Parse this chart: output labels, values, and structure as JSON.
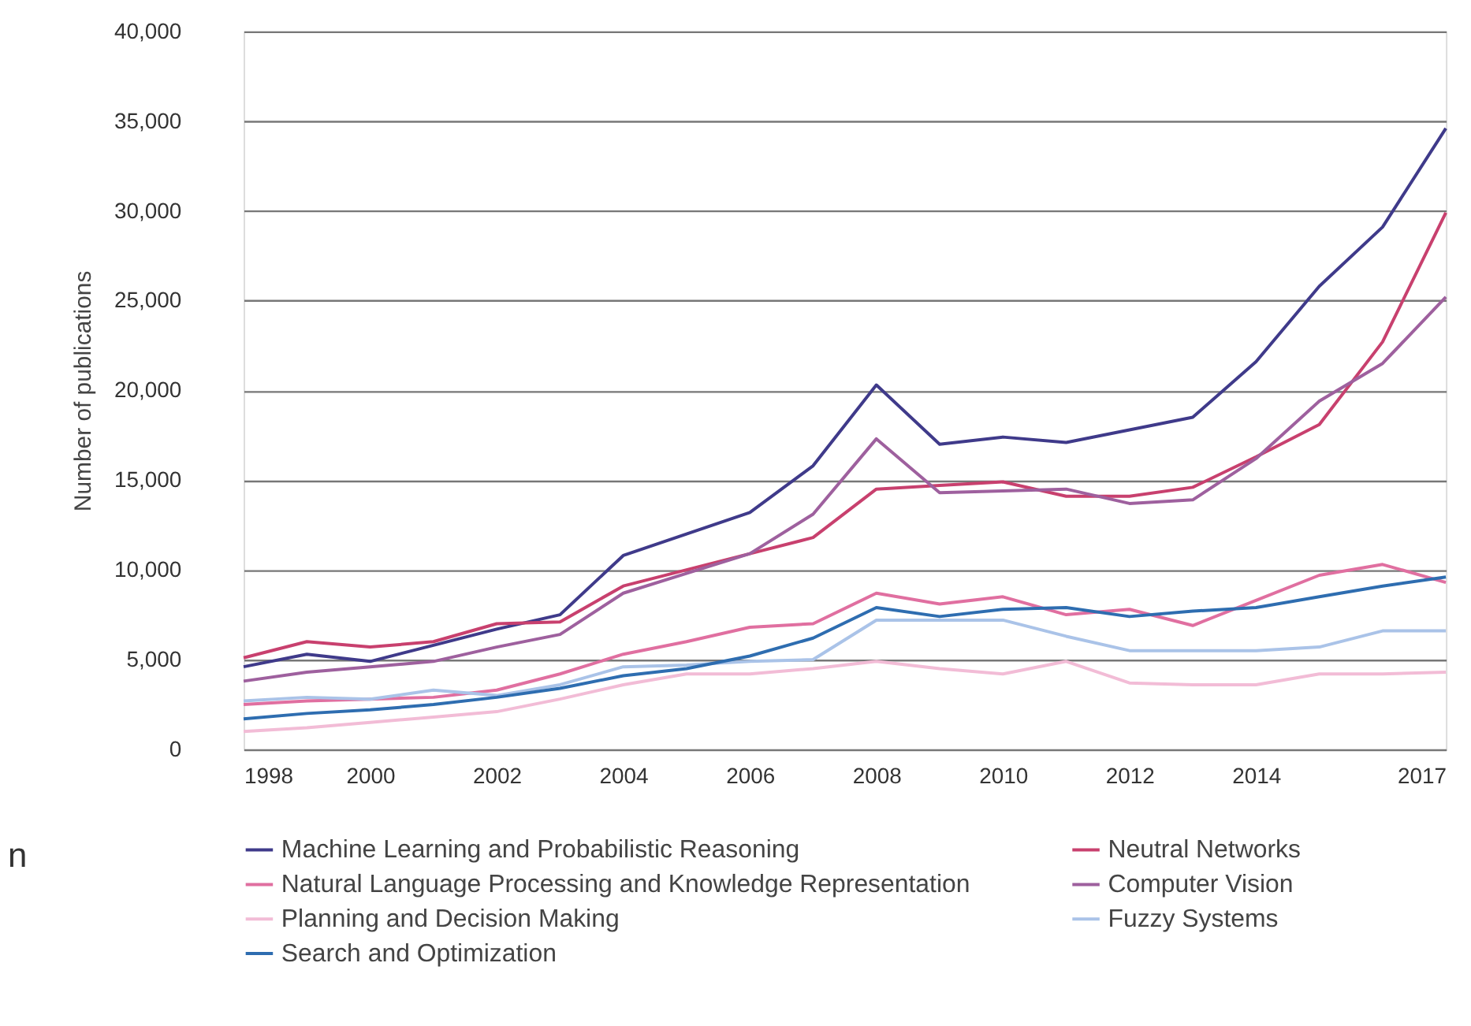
{
  "chart_data": {
    "type": "line",
    "ylabel": "Number of publications",
    "x": [
      1998,
      1999,
      2000,
      2001,
      2002,
      2003,
      2004,
      2005,
      2006,
      2007,
      2008,
      2009,
      2010,
      2011,
      2012,
      2013,
      2014,
      2015,
      2016,
      2017
    ],
    "series": [
      {
        "name": "Machine Learning and Probabilistic Reasoning",
        "color": "#3f3a8a",
        "values": [
          4600,
          5300,
          4900,
          5800,
          6700,
          7500,
          10800,
          12000,
          13200,
          15800,
          20300,
          17000,
          17400,
          17100,
          17800,
          18500,
          21600,
          25800,
          29100,
          34600
        ]
      },
      {
        "name": "Neutral Networks",
        "color": "#c8406e",
        "values": [
          5100,
          6000,
          5700,
          6000,
          7000,
          7100,
          9100,
          10000,
          10900,
          11800,
          14500,
          14700,
          14900,
          14100,
          14100,
          14600,
          16300,
          18100,
          22700,
          29900
        ]
      },
      {
        "name": "Natural Language Processing and Knowledge Representation",
        "color": "#e06fa0",
        "values": [
          2500,
          2700,
          2800,
          2900,
          3300,
          4200,
          5300,
          6000,
          6800,
          7000,
          8700,
          8100,
          8500,
          7500,
          7800,
          6900,
          8300,
          9700,
          10300,
          9300
        ]
      },
      {
        "name": "Computer Vision",
        "color": "#9e609e",
        "values": [
          3800,
          4300,
          4600,
          4900,
          5700,
          6400,
          8700,
          9800,
          10900,
          13100,
          17300,
          14300,
          14400,
          14500,
          13700,
          13900,
          16200,
          19400,
          21500,
          25200
        ]
      },
      {
        "name": "Planning and Decision Making",
        "color": "#f2bcd6",
        "values": [
          1000,
          1200,
          1500,
          1800,
          2100,
          2800,
          3600,
          4200,
          4200,
          4500,
          4900,
          4500,
          4200,
          4900,
          3700,
          3600,
          3600,
          4200,
          4200,
          4300
        ]
      },
      {
        "name": "Fuzzy Systems",
        "color": "#aac3e8",
        "values": [
          2700,
          2900,
          2800,
          3300,
          3000,
          3600,
          4600,
          4700,
          4900,
          5000,
          7200,
          7200,
          7200,
          6300,
          5500,
          5500,
          5500,
          5700,
          6600,
          6600
        ]
      },
      {
        "name": "Search and Optimization",
        "color": "#2e6db0",
        "values": [
          1700,
          2000,
          2200,
          2500,
          2900,
          3400,
          4100,
          4500,
          5200,
          6200,
          7900,
          7400,
          7800,
          7900,
          7400,
          7700,
          7900,
          8500,
          9100,
          9600
        ]
      }
    ],
    "xlim": [
      1998,
      2017
    ],
    "xticks": [
      1998,
      2000,
      2002,
      2004,
      2006,
      2008,
      2010,
      2012,
      2014,
      2017
    ],
    "ylim": [
      0,
      40000
    ],
    "yticks": [
      0,
      {
        "value": 5000,
        "label": "5,000"
      },
      {
        "value": 10000,
        "label": "10,000"
      },
      {
        "value": 15000,
        "label": "15,000"
      },
      {
        "value": 20000,
        "label": "20,000"
      },
      {
        "value": 25000,
        "label": "25,000"
      },
      {
        "value": 30000,
        "label": "30,000"
      },
      {
        "value": 35000,
        "label": "35,000"
      },
      {
        "value": 40000,
        "label": "40,000"
      }
    ],
    "grid": "y",
    "legend": "bottom",
    "line_style": "solid",
    "marker": "none",
    "annotations": [
      "n"
    ]
  }
}
